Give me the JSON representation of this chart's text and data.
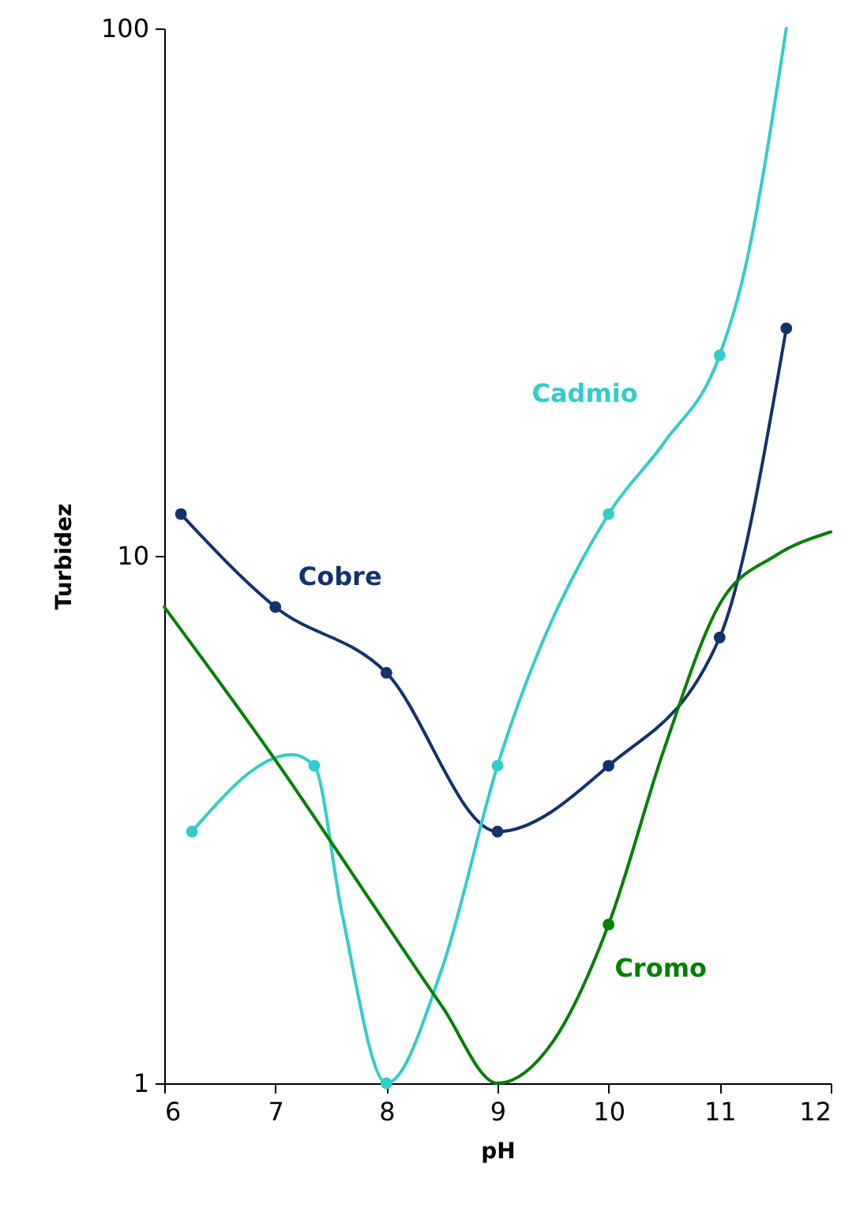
{
  "chart_data": {
    "type": "line",
    "xlabel": "pH",
    "ylabel": "Turbidez",
    "log": "y",
    "xlim": [
      6,
      12
    ],
    "xticks": [
      6,
      7,
      8,
      9,
      10,
      11,
      12
    ],
    "ylim": [
      1,
      100
    ],
    "yticks": [
      1,
      10,
      100
    ],
    "grid": false,
    "line_style": "solid",
    "series": [
      {
        "name": "Cobre",
        "color": "#13326e",
        "marker": "circle",
        "x": [
          6.15,
          7,
          8,
          9,
          10,
          11,
          11.6
        ],
        "values": [
          12,
          8,
          6,
          3,
          4,
          7,
          27
        ]
      },
      {
        "name": "Cadmio",
        "color": "#33cccc",
        "marker": "none",
        "x": [
          6.25,
          7.15,
          7.35,
          7.6,
          8,
          8.5,
          9,
          10,
          10.5,
          11,
          11.2,
          11.6
        ],
        "values": [
          3,
          4.2,
          4,
          2.1,
          1,
          1.65,
          4,
          12,
          16.4,
          24,
          33,
          100
        ]
      },
      {
        "type": "scatter",
        "color": "#33cccc",
        "marker": "circle",
        "x": [
          6.25,
          7.35,
          8,
          9,
          10,
          11
        ],
        "values": [
          3,
          4,
          1,
          4,
          12,
          24
        ]
      },
      {
        "name": "Cromo",
        "color": "#008000",
        "marker": "none",
        "x": [
          6,
          7,
          8,
          8.5,
          9,
          9.5,
          10,
          10.5,
          11,
          11.5,
          12
        ],
        "values": [
          8,
          4.1,
          2,
          1.4,
          1,
          1.2,
          2,
          4.3,
          8.1,
          10,
          11.1
        ]
      },
      {
        "type": "scatter",
        "color": "#008000",
        "marker": "circle",
        "x": [
          10
        ],
        "values": [
          2
        ]
      }
    ]
  }
}
